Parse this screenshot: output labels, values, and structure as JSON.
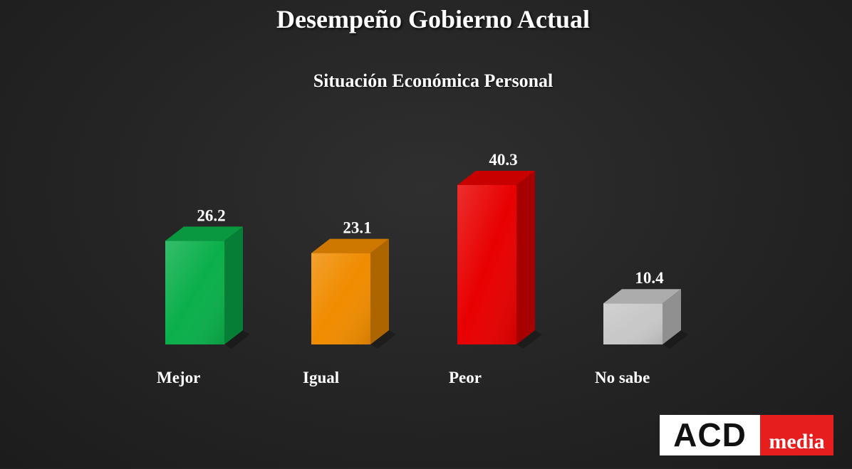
{
  "chart_data": {
    "type": "bar",
    "title": "Desempeño Gobierno Actual",
    "subtitle": "Situación Económica Personal",
    "categories": [
      "Mejor",
      "Igual",
      "Peor",
      "No sabe"
    ],
    "values": [
      26.2,
      23.1,
      40.3,
      10.4
    ],
    "value_labels": [
      "26.2",
      "23.1",
      "40.3",
      "10.4"
    ],
    "colors": [
      "#0aaf4a",
      "#f08c00",
      "#e80000",
      "#c8c8c8"
    ],
    "ylim": [
      0,
      40.3
    ],
    "grid": false,
    "legend": "none"
  },
  "logo": {
    "acd": "ACD",
    "media": "media"
  }
}
